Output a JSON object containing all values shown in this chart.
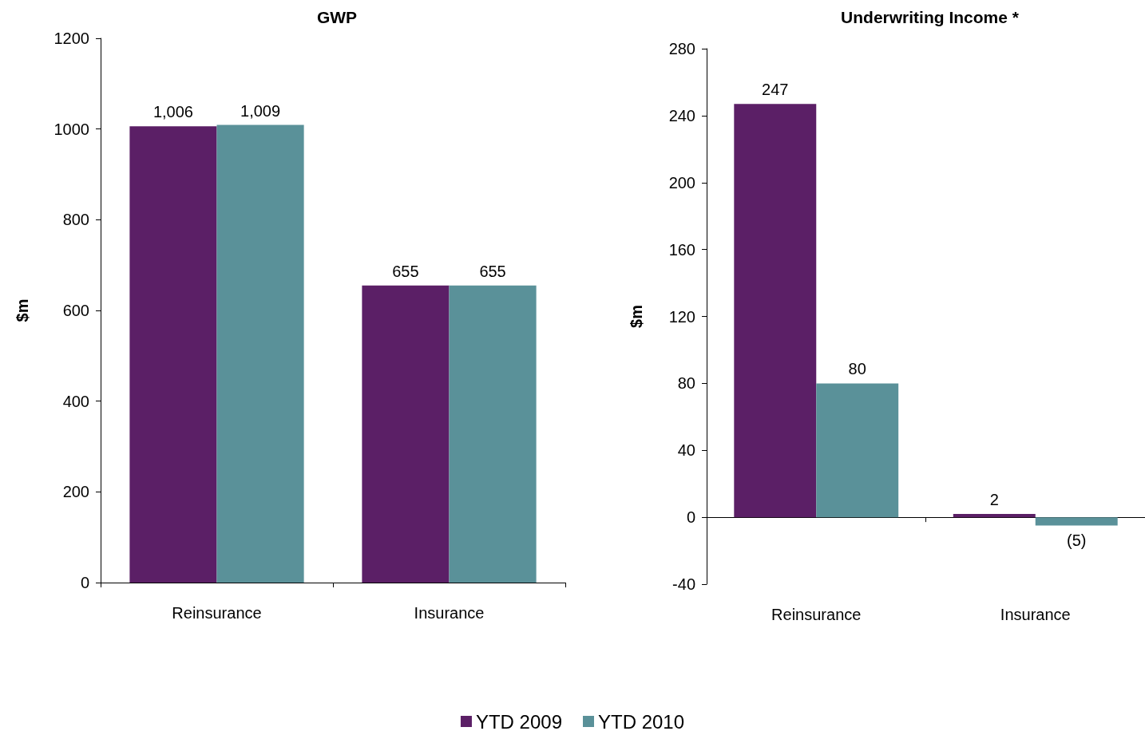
{
  "chart_data": [
    {
      "type": "bar",
      "title": "GWP",
      "ylabel": "$m",
      "categories": [
        "Reinsurance",
        "Insurance"
      ],
      "ylim": [
        0,
        1200
      ],
      "yticks": [
        0,
        200,
        400,
        600,
        800,
        1000,
        1200
      ],
      "legend": false,
      "series": [
        {
          "color": "#5b1f66",
          "values": [
            1006,
            655
          ],
          "value_labels": [
            "1,006",
            "655"
          ]
        },
        {
          "color": "#5a9199",
          "values": [
            1009,
            655
          ],
          "value_labels": [
            "1,009",
            "655"
          ]
        }
      ]
    },
    {
      "type": "bar",
      "title": "Underwriting Income *",
      "ylabel": "$m",
      "categories": [
        "Reinsurance",
        "Insurance"
      ],
      "ylim": [
        -40,
        280
      ],
      "yticks": [
        -40,
        0,
        40,
        80,
        120,
        160,
        200,
        240,
        280
      ],
      "legend": "bottom",
      "series": [
        {
          "name": "YTD 2009",
          "color": "#5b1f66",
          "values": [
            247,
            2
          ],
          "value_labels": [
            "247",
            "2"
          ]
        },
        {
          "name": "YTD 2010",
          "color": "#5a9199",
          "values": [
            80,
            -5
          ],
          "value_labels": [
            "80",
            "(5)"
          ]
        }
      ]
    }
  ]
}
